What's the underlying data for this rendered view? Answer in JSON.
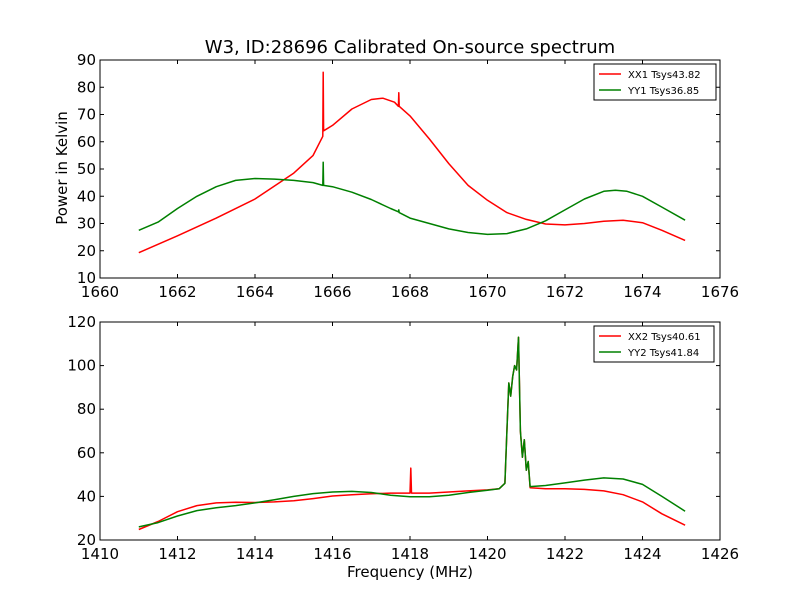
{
  "figure": {
    "title": "W3, ID:28696 Calibrated On-source spectrum",
    "ylabel": "Power in Kelvin",
    "xlabel": "Frequency (MHz)"
  },
  "chart_data": [
    {
      "type": "line",
      "title": "W3, ID:28696 Calibrated On-source spectrum",
      "xlabel": "",
      "ylabel": "Power in Kelvin",
      "xlim": [
        1660,
        1676
      ],
      "ylim": [
        10,
        90
      ],
      "xticks": [
        1660,
        1662,
        1664,
        1666,
        1668,
        1670,
        1672,
        1674,
        1676
      ],
      "yticks": [
        10,
        20,
        30,
        40,
        50,
        60,
        70,
        80,
        90
      ],
      "grid": false,
      "legend_position": "top-right",
      "series": [
        {
          "name": "XX1 Tsys43.82",
          "color": "#ff0000",
          "points": [
            [
              1661.0,
              19.3
            ],
            [
              1662.0,
              25.5
            ],
            [
              1663.0,
              32.0
            ],
            [
              1664.0,
              39.0
            ],
            [
              1665.0,
              48.5
            ],
            [
              1665.5,
              55.0
            ],
            [
              1665.75,
              62.0
            ],
            [
              1665.76,
              85.5
            ],
            [
              1665.77,
              64.0
            ],
            [
              1666.0,
              66.0
            ],
            [
              1666.5,
              72.0
            ],
            [
              1667.0,
              75.5
            ],
            [
              1667.3,
              76.0
            ],
            [
              1667.6,
              74.5
            ],
            [
              1667.7,
              73.0
            ],
            [
              1667.71,
              78.0
            ],
            [
              1667.72,
              73.0
            ],
            [
              1668.0,
              69.5
            ],
            [
              1668.5,
              61.0
            ],
            [
              1669.0,
              52.0
            ],
            [
              1669.5,
              44.0
            ],
            [
              1670.0,
              38.5
            ],
            [
              1670.5,
              34.0
            ],
            [
              1671.0,
              31.5
            ],
            [
              1671.5,
              29.8
            ],
            [
              1672.0,
              29.5
            ],
            [
              1672.5,
              30.0
            ],
            [
              1673.0,
              30.8
            ],
            [
              1673.5,
              31.2
            ],
            [
              1674.0,
              30.3
            ],
            [
              1674.5,
              27.5
            ],
            [
              1675.1,
              23.8
            ]
          ]
        },
        {
          "name": "YY1 Tsys36.85",
          "color": "#008000",
          "points": [
            [
              1661.0,
              27.5
            ],
            [
              1661.5,
              30.5
            ],
            [
              1662.0,
              35.5
            ],
            [
              1662.5,
              40.0
            ],
            [
              1663.0,
              43.5
            ],
            [
              1663.5,
              45.8
            ],
            [
              1664.0,
              46.5
            ],
            [
              1664.5,
              46.3
            ],
            [
              1665.0,
              45.8
            ],
            [
              1665.5,
              45.0
            ],
            [
              1665.75,
              44.0
            ],
            [
              1665.76,
              52.5
            ],
            [
              1665.77,
              44.0
            ],
            [
              1666.0,
              43.5
            ],
            [
              1666.5,
              41.5
            ],
            [
              1667.0,
              38.8
            ],
            [
              1667.5,
              35.5
            ],
            [
              1667.7,
              34.3
            ],
            [
              1667.71,
              35.0
            ],
            [
              1667.72,
              34.0
            ],
            [
              1668.0,
              32.0
            ],
            [
              1668.5,
              30.0
            ],
            [
              1669.0,
              28.0
            ],
            [
              1669.5,
              26.7
            ],
            [
              1670.0,
              26.0
            ],
            [
              1670.5,
              26.3
            ],
            [
              1671.0,
              28.0
            ],
            [
              1671.5,
              31.0
            ],
            [
              1672.0,
              35.0
            ],
            [
              1672.5,
              39.0
            ],
            [
              1673.0,
              41.8
            ],
            [
              1673.3,
              42.2
            ],
            [
              1673.6,
              41.8
            ],
            [
              1674.0,
              40.0
            ],
            [
              1674.5,
              36.0
            ],
            [
              1675.1,
              31.2
            ]
          ]
        }
      ]
    },
    {
      "type": "line",
      "title": "",
      "xlabel": "Frequency (MHz)",
      "ylabel": "",
      "xlim": [
        1410,
        1426
      ],
      "ylim": [
        20,
        120
      ],
      "xticks": [
        1410,
        1412,
        1414,
        1416,
        1418,
        1420,
        1422,
        1424,
        1426
      ],
      "yticks": [
        20,
        40,
        60,
        80,
        100,
        120
      ],
      "grid": false,
      "legend_position": "top-right",
      "series": [
        {
          "name": "XX2 Tsys40.61",
          "color": "#ff0000",
          "points": [
            [
              1411.0,
              24.8
            ],
            [
              1411.5,
              28.5
            ],
            [
              1412.0,
              33.0
            ],
            [
              1412.5,
              35.8
            ],
            [
              1413.0,
              37.0
            ],
            [
              1413.5,
              37.3
            ],
            [
              1414.0,
              37.2
            ],
            [
              1414.5,
              37.5
            ],
            [
              1415.0,
              38.0
            ],
            [
              1415.5,
              39.0
            ],
            [
              1416.0,
              40.2
            ],
            [
              1416.5,
              40.8
            ],
            [
              1417.0,
              41.2
            ],
            [
              1417.5,
              41.5
            ],
            [
              1418.0,
              41.5
            ],
            [
              1418.02,
              53.0
            ],
            [
              1418.04,
              41.5
            ],
            [
              1418.5,
              41.5
            ],
            [
              1419.0,
              42.0
            ],
            [
              1419.5,
              42.5
            ],
            [
              1420.0,
              43.0
            ],
            [
              1420.3,
              43.5
            ],
            [
              1420.45,
              46.0
            ],
            [
              1420.5,
              70.0
            ],
            [
              1420.55,
              92.0
            ],
            [
              1420.6,
              86.0
            ],
            [
              1420.65,
              95.0
            ],
            [
              1420.7,
              100.0
            ],
            [
              1420.75,
              98.0
            ],
            [
              1420.8,
              113.0
            ],
            [
              1420.85,
              70.0
            ],
            [
              1420.9,
              58.0
            ],
            [
              1420.95,
              66.0
            ],
            [
              1421.0,
              52.0
            ],
            [
              1421.05,
              56.0
            ],
            [
              1421.1,
              44.0
            ],
            [
              1421.5,
              43.5
            ],
            [
              1422.0,
              43.5
            ],
            [
              1422.5,
              43.2
            ],
            [
              1423.0,
              42.5
            ],
            [
              1423.5,
              40.8
            ],
            [
              1424.0,
              37.5
            ],
            [
              1424.5,
              32.0
            ],
            [
              1425.1,
              26.8
            ]
          ]
        },
        {
          "name": "YY2 Tsys41.84",
          "color": "#008000",
          "points": [
            [
              1411.0,
              26.0
            ],
            [
              1411.5,
              28.0
            ],
            [
              1412.0,
              31.0
            ],
            [
              1412.5,
              33.5
            ],
            [
              1413.0,
              34.8
            ],
            [
              1413.5,
              35.8
            ],
            [
              1414.0,
              37.0
            ],
            [
              1414.5,
              38.5
            ],
            [
              1415.0,
              40.0
            ],
            [
              1415.5,
              41.3
            ],
            [
              1416.0,
              42.0
            ],
            [
              1416.5,
              42.3
            ],
            [
              1417.0,
              41.8
            ],
            [
              1417.5,
              40.5
            ],
            [
              1418.0,
              39.8
            ],
            [
              1418.5,
              39.8
            ],
            [
              1419.0,
              40.5
            ],
            [
              1419.5,
              41.8
            ],
            [
              1420.0,
              42.8
            ],
            [
              1420.3,
              43.5
            ],
            [
              1420.45,
              46.0
            ],
            [
              1420.5,
              70.0
            ],
            [
              1420.55,
              92.0
            ],
            [
              1420.6,
              86.0
            ],
            [
              1420.65,
              95.0
            ],
            [
              1420.7,
              100.0
            ],
            [
              1420.75,
              98.0
            ],
            [
              1420.8,
              113.0
            ],
            [
              1420.85,
              70.0
            ],
            [
              1420.9,
              58.0
            ],
            [
              1420.95,
              66.0
            ],
            [
              1421.0,
              52.0
            ],
            [
              1421.05,
              56.0
            ],
            [
              1421.1,
              44.5
            ],
            [
              1421.5,
              45.0
            ],
            [
              1422.0,
              46.2
            ],
            [
              1422.5,
              47.5
            ],
            [
              1423.0,
              48.5
            ],
            [
              1423.5,
              48.0
            ],
            [
              1424.0,
              45.5
            ],
            [
              1424.5,
              40.0
            ],
            [
              1425.1,
              33.2
            ]
          ]
        }
      ]
    }
  ]
}
